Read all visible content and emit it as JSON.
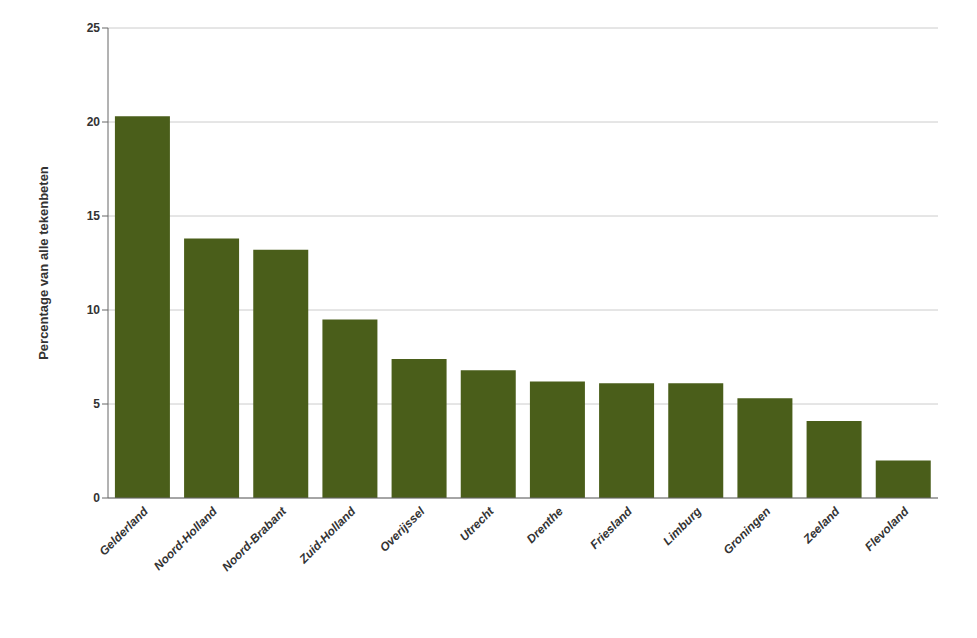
{
  "chart_data": {
    "type": "bar",
    "ylabel": "Percentage van alle tekenbeten",
    "categories": [
      "Gelderland",
      "Noord-Holland",
      "Noord-Brabant",
      "Zuid-Holland",
      "Overijssel",
      "Utrecht",
      "Drenthe",
      "Friesland",
      "Limburg",
      "Groningen",
      "Zeeland",
      "Flevoland"
    ],
    "values": [
      20.3,
      13.8,
      13.2,
      9.5,
      7.4,
      6.8,
      6.2,
      6.1,
      6.1,
      5.3,
      4.1,
      2.0
    ],
    "color": "#4a5e1a",
    "ylim": [
      0,
      25
    ],
    "yticks": [
      0,
      5,
      10,
      15,
      20,
      25
    ],
    "grid": true
  }
}
